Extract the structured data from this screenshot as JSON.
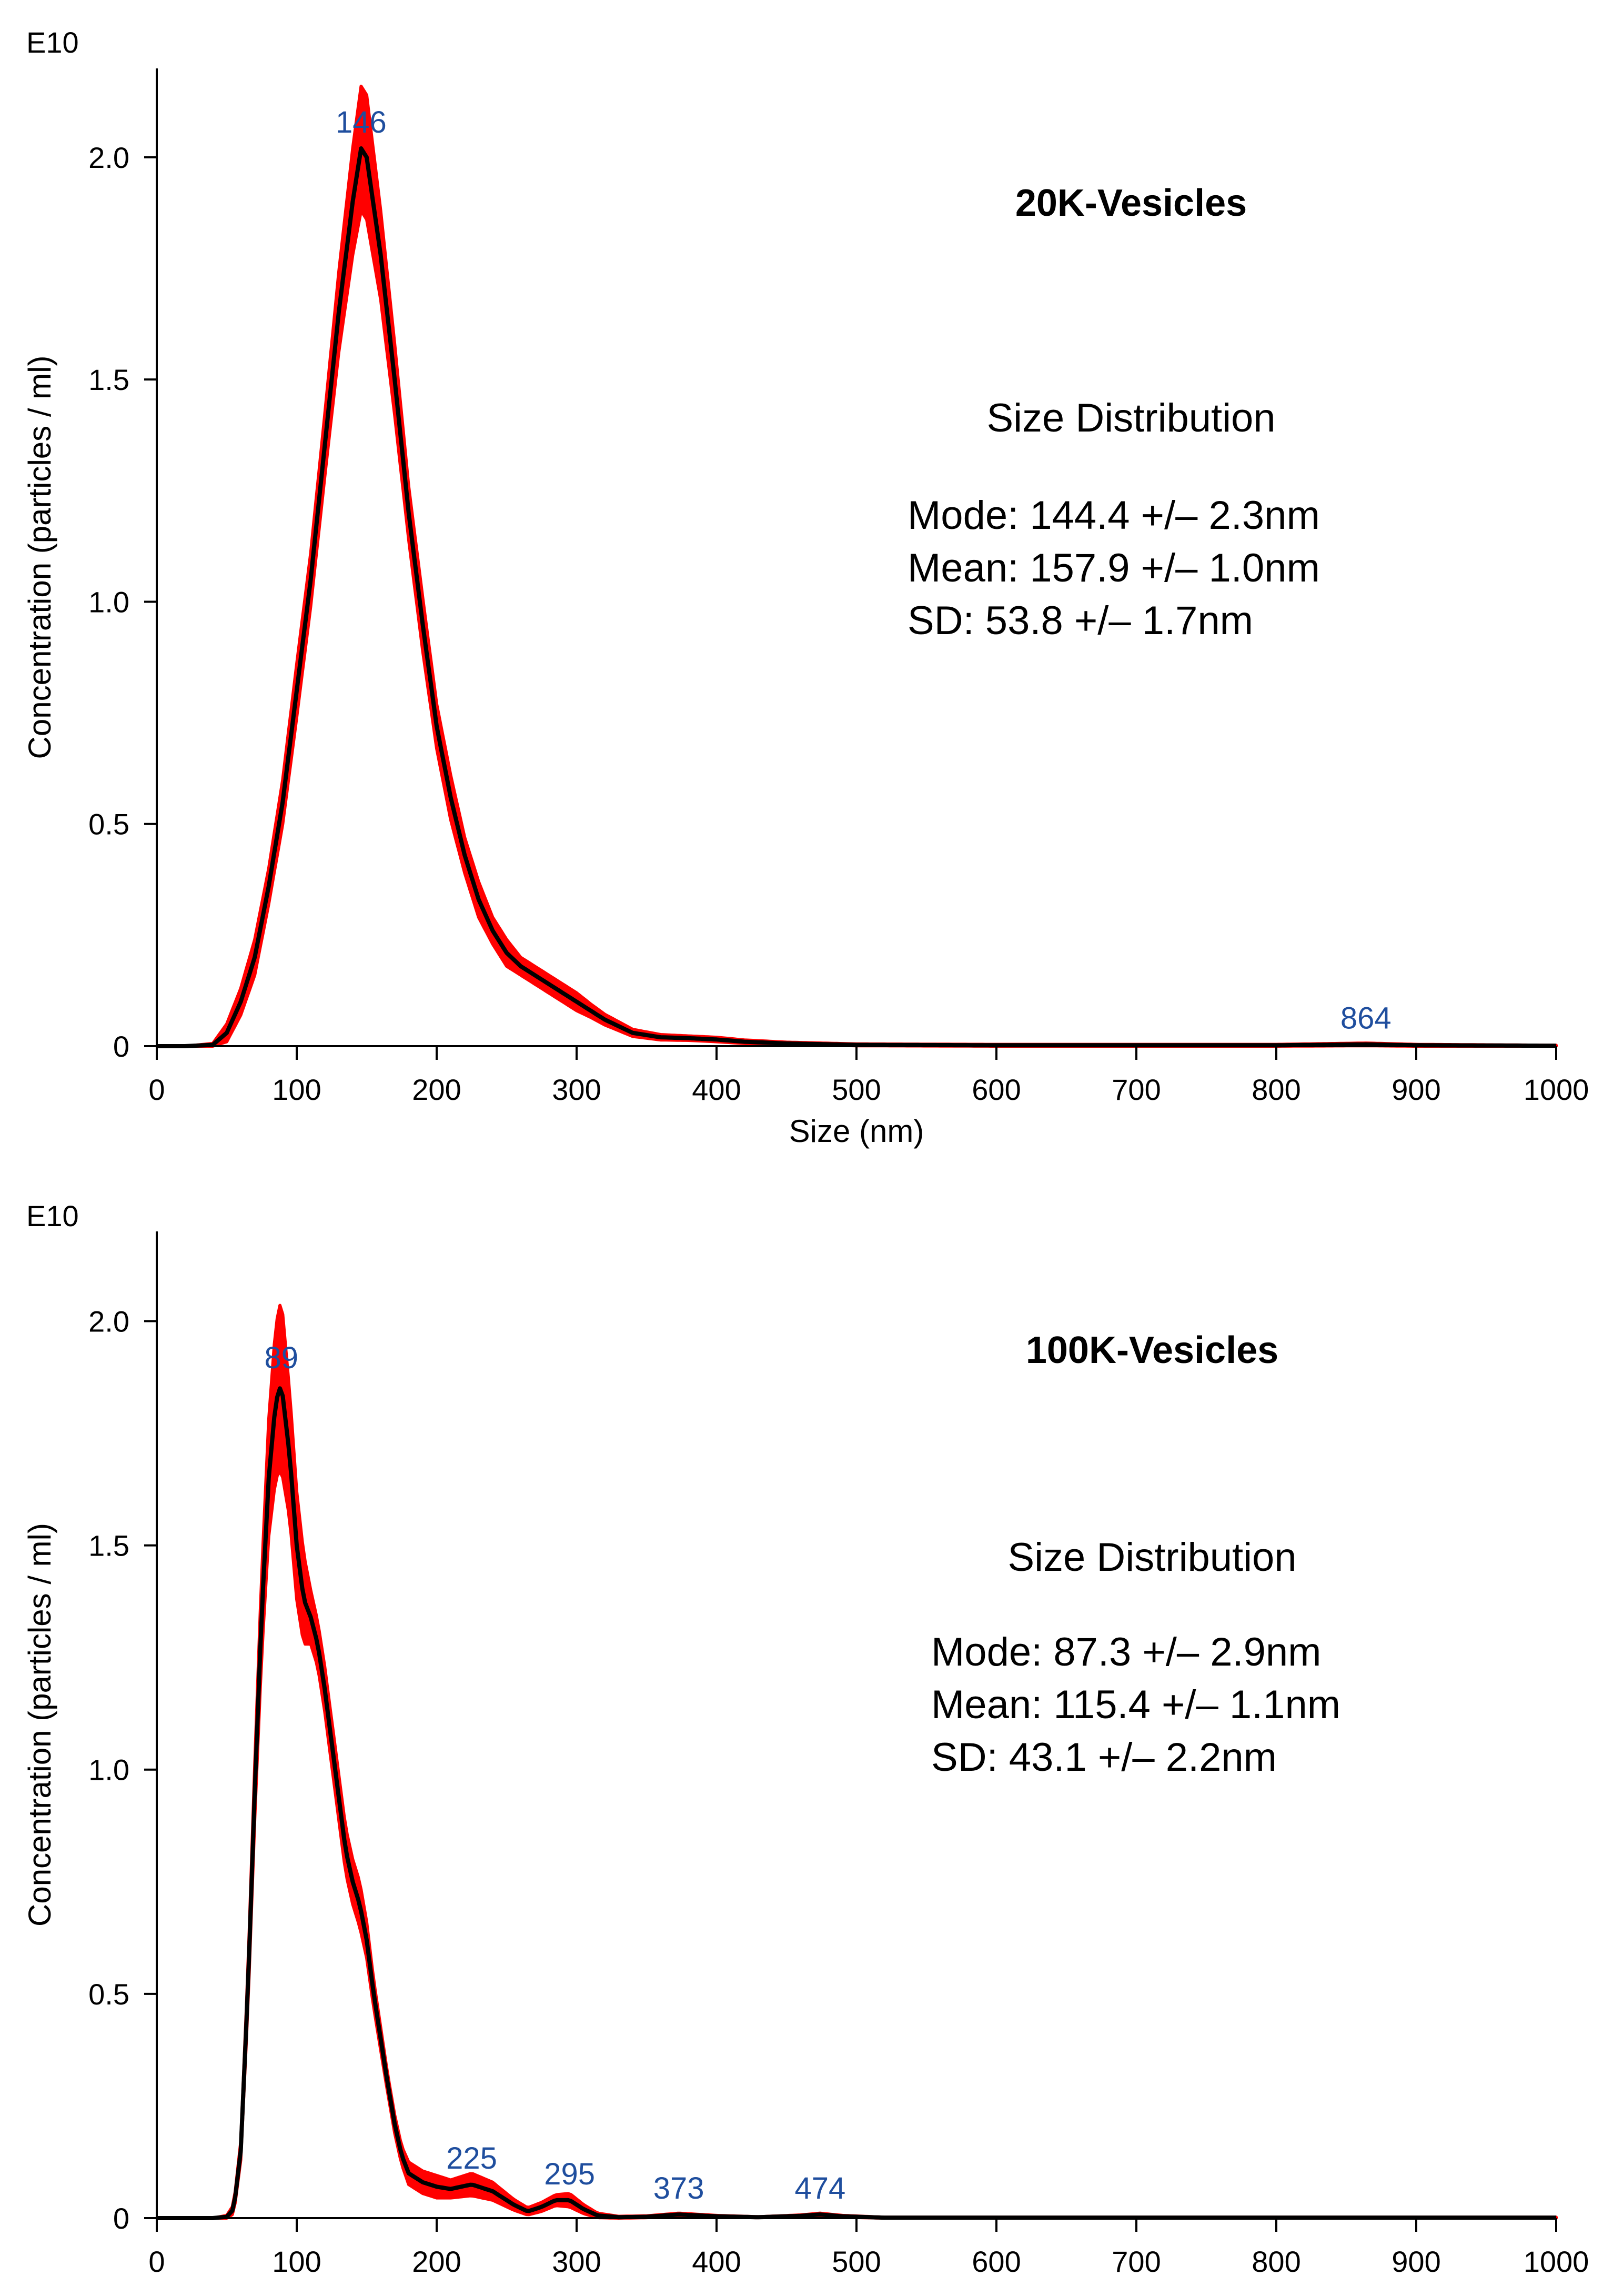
{
  "colors": {
    "mean_line": "#000000",
    "error_band": "#ff0000",
    "peak_label": "#1f4e9e",
    "axis": "#000000"
  },
  "chart_data": [
    {
      "type": "line",
      "title": "20K-Vesicles",
      "exponent_label": "E10",
      "xlabel": "Size (nm)",
      "ylabel": "Concentration (particles / ml)",
      "xlim": [
        0,
        1000
      ],
      "ylim": [
        0,
        2.2
      ],
      "x_ticks": [
        0,
        100,
        200,
        300,
        400,
        500,
        600,
        700,
        800,
        900,
        1000
      ],
      "x_tick_labels": [
        "0",
        "100",
        "200",
        "300",
        "400",
        "500",
        "600",
        "700",
        "800",
        "900",
        "1000"
      ],
      "y_ticks": [
        0,
        0.5,
        1.0,
        1.5,
        2.0
      ],
      "y_tick_labels": [
        "0",
        "0.5",
        "1.0",
        "1.5",
        "2.0"
      ],
      "stats_heading": "Size Distribution",
      "stats": [
        "Mode: 144.4 +/– 2.3nm",
        "Mean: 157.9 +/– 1.0nm",
        "SD: 53.8 +/– 1.7nm"
      ],
      "peak_labels": [
        {
          "x": 146,
          "y": 2.02,
          "text": "146"
        },
        {
          "x": 864,
          "y": 0.004,
          "text": "864"
        }
      ],
      "series": [
        {
          "name": "mean",
          "x": [
            0,
            20,
            40,
            50,
            60,
            70,
            80,
            90,
            100,
            110,
            120,
            130,
            140,
            146,
            150,
            160,
            170,
            180,
            190,
            200,
            210,
            220,
            230,
            240,
            250,
            260,
            270,
            280,
            290,
            300,
            310,
            320,
            330,
            340,
            360,
            380,
            400,
            420,
            450,
            500,
            600,
            700,
            800,
            864,
            900,
            1000
          ],
          "y": [
            0,
            0,
            0.003,
            0.03,
            0.1,
            0.2,
            0.36,
            0.55,
            0.8,
            1.05,
            1.35,
            1.65,
            1.9,
            2.02,
            2.0,
            1.78,
            1.5,
            1.2,
            0.95,
            0.72,
            0.56,
            0.43,
            0.33,
            0.26,
            0.21,
            0.18,
            0.16,
            0.14,
            0.12,
            0.1,
            0.08,
            0.06,
            0.045,
            0.03,
            0.02,
            0.018,
            0.015,
            0.01,
            0.006,
            0.003,
            0.002,
            0.002,
            0.002,
            0.004,
            0.002,
            0.001
          ]
        },
        {
          "name": "error_half_width",
          "x": [
            0,
            20,
            40,
            50,
            60,
            70,
            80,
            90,
            100,
            110,
            120,
            130,
            140,
            146,
            150,
            160,
            170,
            180,
            190,
            200,
            210,
            220,
            230,
            240,
            250,
            260,
            270,
            280,
            290,
            300,
            310,
            320,
            330,
            340,
            360,
            380,
            400,
            420,
            450,
            500,
            600,
            700,
            800,
            864,
            900,
            1000
          ],
          "y": [
            0,
            0,
            0.003,
            0.02,
            0.03,
            0.04,
            0.04,
            0.05,
            0.06,
            0.06,
            0.07,
            0.09,
            0.12,
            0.14,
            0.14,
            0.1,
            0.08,
            0.06,
            0.06,
            0.05,
            0.05,
            0.04,
            0.04,
            0.03,
            0.03,
            0.02,
            0.02,
            0.02,
            0.02,
            0.02,
            0.015,
            0.012,
            0.01,
            0.008,
            0.006,
            0.005,
            0.005,
            0.004,
            0.003,
            0.002,
            0.002,
            0.002,
            0.002,
            0.003,
            0.002,
            0.001
          ]
        }
      ]
    },
    {
      "type": "line",
      "title": "100K-Vesicles",
      "exponent_label": "E10",
      "xlabel": "",
      "ylabel": "Concentration (particles / ml)",
      "xlim": [
        0,
        1000
      ],
      "ylim": [
        0,
        2.2
      ],
      "x_ticks": [
        0,
        100,
        200,
        300,
        400,
        500,
        600,
        700,
        800,
        900,
        1000
      ],
      "x_tick_labels": [
        "0",
        "100",
        "200",
        "300",
        "400",
        "500",
        "600",
        "700",
        "800",
        "900",
        "1000"
      ],
      "y_ticks": [
        0,
        0.5,
        1.0,
        1.5,
        2.0
      ],
      "y_tick_labels": [
        "0",
        "0.5",
        "1.0",
        "1.5",
        "2.0"
      ],
      "stats_heading": "Size Distribution",
      "stats": [
        "Mode: 87.3 +/– 2.9nm",
        "Mean: 115.4 +/– 1.1nm",
        "SD: 43.1 +/– 2.2nm"
      ],
      "peak_labels": [
        {
          "x": 89,
          "y": 1.86,
          "text": "89"
        },
        {
          "x": 225,
          "y": 0.075,
          "text": "225"
        },
        {
          "x": 295,
          "y": 0.04,
          "text": "295"
        },
        {
          "x": 373,
          "y": 0.008,
          "text": "373"
        },
        {
          "x": 474,
          "y": 0.008,
          "text": "474"
        }
      ],
      "series": [
        {
          "name": "mean",
          "x": [
            0,
            40,
            50,
            55,
            60,
            65,
            70,
            75,
            80,
            85,
            89,
            95,
            100,
            105,
            110,
            115,
            120,
            125,
            130,
            135,
            140,
            145,
            150,
            155,
            160,
            165,
            170,
            175,
            180,
            190,
            200,
            210,
            225,
            240,
            255,
            265,
            275,
            285,
            295,
            305,
            315,
            330,
            350,
            373,
            400,
            430,
            460,
            474,
            490,
            520,
            600,
            700,
            800,
            900,
            1000
          ],
          "y": [
            0,
            0,
            0.003,
            0.02,
            0.15,
            0.5,
            0.95,
            1.35,
            1.65,
            1.82,
            1.86,
            1.7,
            1.5,
            1.38,
            1.34,
            1.28,
            1.18,
            1.06,
            0.94,
            0.82,
            0.75,
            0.7,
            0.62,
            0.5,
            0.4,
            0.3,
            0.21,
            0.14,
            0.1,
            0.08,
            0.07,
            0.065,
            0.075,
            0.06,
            0.03,
            0.015,
            0.025,
            0.04,
            0.04,
            0.02,
            0.006,
            0.002,
            0.003,
            0.008,
            0.004,
            0.002,
            0.005,
            0.008,
            0.004,
            0.001,
            0.001,
            0.001,
            0.001,
            0.001,
            0.001
          ]
        },
        {
          "name": "error_half_width",
          "x": [
            0,
            40,
            50,
            55,
            60,
            65,
            70,
            75,
            80,
            85,
            89,
            95,
            100,
            105,
            110,
            115,
            120,
            125,
            130,
            135,
            140,
            145,
            150,
            155,
            160,
            165,
            170,
            175,
            180,
            190,
            200,
            210,
            225,
            240,
            255,
            265,
            275,
            285,
            295,
            305,
            315,
            330,
            350,
            373,
            400,
            430,
            460,
            474,
            490,
            520,
            600,
            700,
            800,
            900,
            1000
          ],
          "y": [
            0,
            0,
            0.003,
            0.01,
            0.02,
            0.04,
            0.06,
            0.09,
            0.13,
            0.17,
            0.19,
            0.14,
            0.12,
            0.1,
            0.06,
            0.05,
            0.05,
            0.05,
            0.05,
            0.05,
            0.05,
            0.05,
            0.04,
            0.03,
            0.025,
            0.02,
            0.02,
            0.02,
            0.025,
            0.025,
            0.025,
            0.02,
            0.025,
            0.02,
            0.012,
            0.008,
            0.01,
            0.012,
            0.015,
            0.01,
            0.005,
            0.002,
            0.002,
            0.003,
            0.002,
            0.001,
            0.002,
            0.003,
            0.002,
            0.001,
            0.001,
            0.001,
            0.001,
            0.001,
            0.001
          ]
        }
      ]
    }
  ]
}
